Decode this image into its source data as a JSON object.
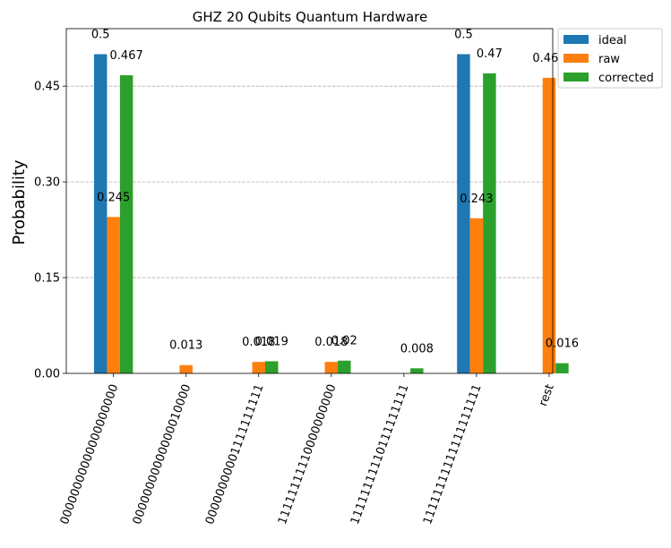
{
  "chart_data": {
    "type": "bar",
    "title": "GHZ 20 Qubits Quantum Hardware",
    "xlabel": "",
    "ylabel": "Probability",
    "ylim": [
      0,
      0.54
    ],
    "yticks": [
      "0.00",
      "0.15",
      "0.30",
      "0.45"
    ],
    "grid": "y-dashed",
    "legend_position": "outside-top-right",
    "categories": [
      "00000000000000000000",
      "00000000000000010000",
      "00000000001111111111",
      "11111111110000000000",
      "11111111110111111111",
      "11111111111111111111",
      "rest"
    ],
    "series": [
      {
        "name": "ideal",
        "color": "#1f77b4",
        "values": [
          0.5,
          0,
          0,
          0,
          0,
          0.5,
          0
        ],
        "labels": [
          "0.5",
          "",
          "",
          "",
          "",
          "0.5",
          ""
        ]
      },
      {
        "name": "raw",
        "color": "#ff7f0e",
        "values": [
          0.245,
          0.013,
          0.018,
          0.018,
          0,
          0.243,
          0.463
        ],
        "labels": [
          "0.245",
          "0.013",
          "0.018",
          "0.018",
          "",
          "0.243",
          "0.463"
        ]
      },
      {
        "name": "corrected",
        "color": "#2ca02c",
        "values": [
          0.467,
          0,
          0.019,
          0.02,
          0.008,
          0.47,
          0.016
        ],
        "labels": [
          "0.467",
          "",
          "0.019",
          "0.02",
          "0.008",
          "0.47",
          "0.016"
        ]
      }
    ]
  }
}
